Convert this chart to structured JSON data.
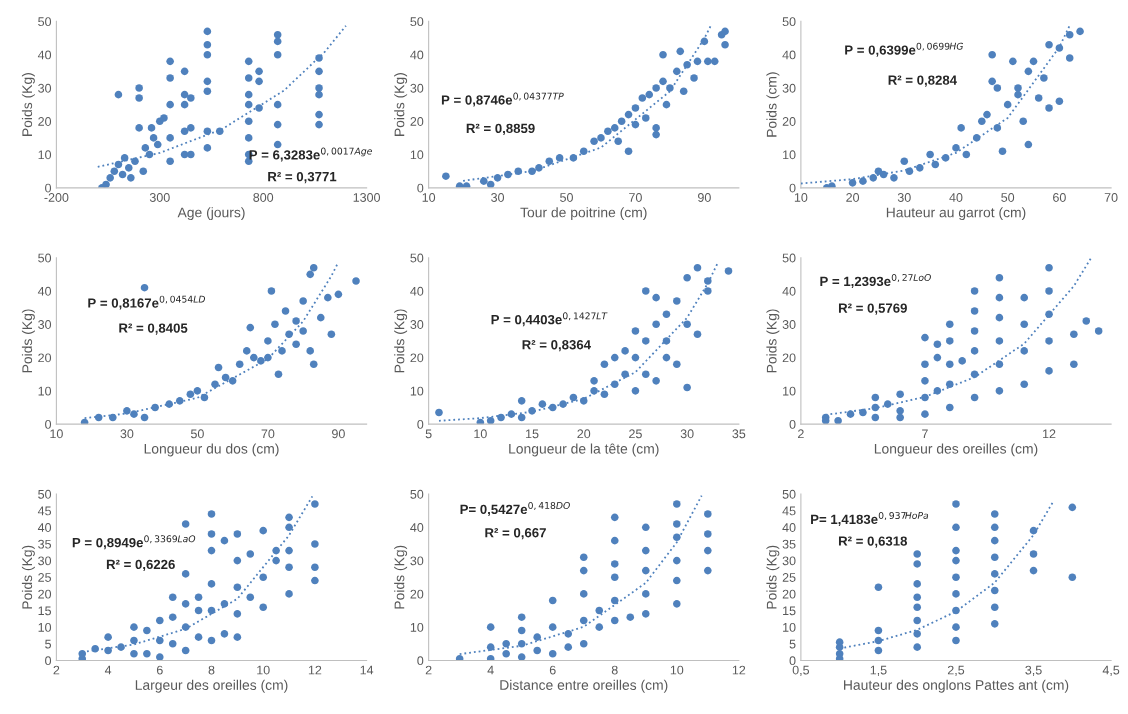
{
  "chart_data": [
    {
      "type": "scatter",
      "xlabel": "Age (jours)",
      "ylabel": "Poids (Kg)",
      "xlim": [
        -200,
        1300
      ],
      "xticks": [
        -200,
        300,
        800,
        1300
      ],
      "ylim": [
        0,
        50
      ],
      "yticks": [
        0,
        10,
        20,
        30,
        40,
        50
      ],
      "grid": false,
      "annotations": [
        "P = 6,3283e$^{0,0017Age}$",
        "R² = 0,3771"
      ],
      "series": [
        {
          "marker": "circle",
          "color": "#4f81bd",
          "x": [
            20,
            40,
            60,
            80,
            100,
            100,
            120,
            150,
            180,
            200,
            200,
            200,
            230,
            250,
            270,
            300,
            320,
            350,
            350,
            350,
            350,
            350,
            420,
            420,
            420,
            420,
            420,
            450,
            450,
            450,
            530,
            530,
            530,
            530,
            530,
            530,
            530,
            590,
            730,
            730,
            730,
            730,
            730,
            730,
            730,
            730,
            780,
            780,
            780,
            870,
            870,
            870,
            870,
            870,
            870,
            1070,
            1070,
            1070,
            1070,
            1070,
            1070,
            130,
            160,
            220,
            260,
            290
          ],
          "values": [
            0,
            1,
            3,
            5,
            7,
            28,
            4,
            6,
            8,
            30,
            27,
            18,
            12,
            10,
            15,
            20,
            21,
            38,
            33,
            25,
            15,
            8,
            35,
            28,
            25,
            17,
            10,
            27,
            18,
            10,
            47,
            43,
            40,
            32,
            29,
            17,
            12,
            17,
            38,
            33,
            28,
            25,
            20,
            15,
            10,
            8,
            35,
            32,
            24,
            46,
            44,
            40,
            25,
            19,
            13,
            39,
            35,
            30,
            28,
            22,
            19,
            9,
            3,
            5,
            18,
            13
          ]
        },
        {
          "type": "line",
          "marker": "none",
          "line_style": "dotted",
          "color": "#4f81bd",
          "x": [
            0,
            300,
            600,
            900,
            1100,
            1200
          ],
          "values": [
            6.3,
            10.5,
            17.6,
            29.2,
            41.0,
            48.7
          ]
        }
      ]
    },
    {
      "type": "scatter",
      "xlabel": "Tour de poitrine (cm)",
      "ylabel": "Poids (Kg)",
      "xlim": [
        10,
        100
      ],
      "xticks": [
        10,
        30,
        50,
        70,
        90
      ],
      "ylim": [
        0,
        50
      ],
      "yticks": [
        0,
        10,
        20,
        30,
        40,
        50
      ],
      "grid": false,
      "annotations": [
        "P = 0,8746e$^{0,04377TP}$",
        "R² = 0,8859"
      ],
      "series": [
        {
          "marker": "circle",
          "color": "#4f81bd",
          "x": [
            15,
            19,
            21,
            26,
            28,
            30,
            33,
            36,
            40,
            42,
            45,
            48,
            52,
            55,
            58,
            60,
            62,
            64,
            66,
            68,
            70,
            72,
            74,
            76,
            78,
            80,
            82,
            85,
            87,
            88,
            70,
            65,
            73,
            79,
            84,
            68,
            76,
            76,
            78,
            83,
            90,
            95,
            96,
            96,
            91,
            93
          ],
          "values": [
            3.5,
            0.5,
            0.5,
            2,
            1,
            3,
            4,
            5,
            5,
            6,
            8,
            9,
            9,
            11,
            14,
            15,
            17,
            18,
            20,
            22,
            24,
            27,
            28,
            30,
            32,
            30,
            35,
            37,
            33,
            38,
            19,
            14,
            21,
            25,
            29,
            11,
            16,
            18,
            40,
            41,
            44,
            46,
            47,
            43,
            38,
            38
          ]
        },
        {
          "type": "line",
          "marker": "none",
          "line_style": "dotted",
          "color": "#4f81bd",
          "x": [
            20,
            40,
            60,
            80,
            90,
            92
          ],
          "values": [
            2.1,
            5.0,
            12.1,
            29.0,
            44.9,
            49.0
          ]
        }
      ]
    },
    {
      "type": "scatter",
      "xlabel": "Hauteur au garrot (cm)",
      "ylabel": "Poids (cm)",
      "xlim": [
        10,
        70
      ],
      "xticks": [
        10,
        20,
        30,
        40,
        50,
        60,
        70
      ],
      "ylim": [
        0,
        50
      ],
      "yticks": [
        0,
        10,
        20,
        30,
        40,
        50
      ],
      "grid": false,
      "annotations": [
        "P = 0,6399e$^{0,0699HG}$",
        "R² = 0,8284"
      ],
      "series": [
        {
          "marker": "circle",
          "color": "#4f81bd",
          "x": [
            15,
            16,
            20,
            22,
            24,
            25,
            26,
            28,
            30,
            31,
            33,
            35,
            36,
            38,
            40,
            41,
            42,
            44,
            45,
            46,
            47,
            47,
            48,
            49,
            50,
            51,
            52,
            53,
            54,
            54,
            55,
            56,
            57,
            58,
            58,
            60,
            60,
            62,
            62,
            64,
            52,
            48
          ],
          "values": [
            0,
            0.5,
            1.5,
            2,
            3,
            5,
            4,
            3,
            8,
            5,
            6,
            10,
            7,
            9,
            12,
            18,
            10,
            15,
            20,
            22,
            40,
            32,
            18,
            11,
            25,
            38,
            30,
            20,
            13,
            35,
            38,
            27,
            33,
            24,
            43,
            26,
            42,
            39,
            46,
            47,
            28,
            30
          ]
        },
        {
          "type": "line",
          "marker": "none",
          "line_style": "dotted",
          "color": "#4f81bd",
          "x": [
            10,
            20,
            30,
            40,
            50,
            60,
            62
          ],
          "values": [
            1.3,
            2.6,
            5.2,
            10.5,
            21.0,
            42.3,
            48.8
          ]
        }
      ]
    },
    {
      "type": "scatter",
      "xlabel": "Longueur du dos (cm)",
      "ylabel": "Poids (Kg)",
      "xlim": [
        10,
        98
      ],
      "xticks": [
        10,
        30,
        50,
        70,
        90
      ],
      "ylim": [
        0,
        50
      ],
      "yticks": [
        0,
        10,
        20,
        30,
        40,
        50
      ],
      "grid": false,
      "annotations": [
        "P = 0,8167e$^{0,0454LD}$",
        "R² = 0,8405"
      ],
      "series": [
        {
          "marker": "circle",
          "color": "#4f81bd",
          "x": [
            18,
            22,
            26,
            30,
            32,
            35,
            35,
            38,
            42,
            45,
            48,
            50,
            52,
            55,
            56,
            58,
            60,
            62,
            64,
            65,
            66,
            68,
            70,
            71,
            72,
            73,
            74,
            75,
            76,
            78,
            80,
            80,
            82,
            82,
            83,
            83,
            85,
            87,
            88,
            90,
            95,
            78,
            70
          ],
          "values": [
            0.5,
            2,
            2,
            4,
            3,
            41,
            2,
            5,
            6,
            7,
            9,
            10,
            8,
            12,
            17,
            14,
            13,
            18,
            22,
            29,
            20,
            19,
            25,
            40,
            30,
            15,
            22,
            34,
            27,
            31,
            37,
            28,
            22,
            45,
            47,
            18,
            32,
            38,
            27,
            39,
            43,
            24,
            20
          ]
        },
        {
          "type": "line",
          "marker": "none",
          "line_style": "dotted",
          "color": "#4f81bd",
          "x": [
            18,
            30,
            50,
            70,
            80,
            88,
            90
          ],
          "values": [
            1.8,
            3.2,
            7.9,
            19.6,
            30.9,
            44.5,
            48.7
          ]
        }
      ]
    },
    {
      "type": "scatter",
      "xlabel": "Longueur de la tête (cm)",
      "ylabel": "Poids (Kg)",
      "xlim": [
        5,
        35
      ],
      "xticks": [
        5,
        10,
        15,
        20,
        25,
        30,
        35
      ],
      "ylim": [
        0,
        50
      ],
      "yticks": [
        0,
        10,
        20,
        30,
        40,
        50
      ],
      "grid": false,
      "annotations": [
        "P = 0,4403e$^{0,1427LT}$",
        "R² = 0,8364"
      ],
      "series": [
        {
          "marker": "circle",
          "color": "#4f81bd",
          "x": [
            6,
            10,
            11,
            12,
            13,
            14,
            14,
            15,
            16,
            17,
            18,
            19,
            20,
            21,
            21,
            22,
            22,
            23,
            23,
            24,
            24,
            25,
            25,
            26,
            26,
            26,
            27,
            27,
            27,
            28,
            28,
            29,
            29,
            30,
            30,
            30,
            31,
            31,
            32,
            32,
            34,
            28,
            25
          ],
          "values": [
            3.5,
            0.5,
            1,
            2,
            3,
            7,
            2,
            4,
            6,
            5,
            6,
            8,
            7,
            10,
            13,
            9,
            18,
            12,
            20,
            15,
            22,
            10,
            28,
            40,
            15,
            25,
            38,
            13,
            30,
            20,
            33,
            18,
            37,
            11,
            30,
            44,
            47,
            27,
            40,
            43,
            46,
            25,
            20
          ]
        },
        {
          "type": "line",
          "marker": "none",
          "line_style": "dotted",
          "color": "#4f81bd",
          "x": [
            6,
            10,
            15,
            20,
            25,
            30,
            32,
            33
          ],
          "values": [
            1.0,
            1.8,
            3.7,
            7.6,
            15.6,
            32.0,
            42.3,
            48.7
          ]
        }
      ]
    },
    {
      "type": "scatter",
      "xlabel": "Longueur des oreilles (cm)",
      "ylabel": "Poids (Kg)",
      "xlim": [
        2,
        14.5
      ],
      "xticks": [
        2,
        7,
        12
      ],
      "ylim": [
        0,
        50
      ],
      "yticks": [
        0,
        10,
        20,
        30,
        40,
        50
      ],
      "grid": false,
      "annotations": [
        "P = 1,2393e$^{0,27LoO}$",
        "R² = 0,5769"
      ],
      "series": [
        {
          "marker": "circle",
          "color": "#4f81bd",
          "x": [
            3,
            3,
            3.5,
            4,
            4.5,
            5,
            5,
            5,
            5.5,
            6,
            6,
            6,
            7,
            7,
            7,
            7,
            7,
            7.5,
            7.5,
            7.5,
            8,
            8,
            8,
            8,
            8,
            8.5,
            9,
            9,
            9,
            9,
            9,
            9,
            10,
            10,
            10,
            10,
            10,
            10,
            11,
            11,
            11,
            11,
            12,
            12,
            12,
            12,
            12,
            13,
            13,
            13.5,
            14
          ],
          "values": [
            2,
            1,
            1,
            3,
            3.5,
            5,
            8,
            2,
            6,
            4,
            9,
            2,
            3,
            8,
            13,
            18,
            26,
            10,
            20,
            24,
            5,
            12,
            18,
            25,
            30,
            19,
            8,
            15,
            22,
            28,
            34,
            40,
            10,
            18,
            25,
            32,
            38,
            44,
            12,
            22,
            30,
            38,
            16,
            25,
            33,
            40,
            47,
            18,
            27,
            31,
            28
          ]
        },
        {
          "type": "line",
          "marker": "none",
          "line_style": "dotted",
          "color": "#4f81bd",
          "x": [
            3,
            5,
            7,
            9,
            11,
            13,
            13.7
          ],
          "values": [
            2.8,
            4.8,
            8.2,
            14.1,
            24.2,
            41.5,
            50.0
          ]
        }
      ]
    },
    {
      "type": "scatter",
      "xlabel": "Largeur des oreilles (cm)",
      "ylabel": "Poids (Kg)",
      "xlim": [
        2,
        14
      ],
      "xticks": [
        2,
        4,
        6,
        8,
        10,
        12,
        14
      ],
      "ylim": [
        0,
        50
      ],
      "yticks": [
        0,
        5,
        10,
        15,
        20,
        25,
        30,
        35,
        40,
        45,
        50
      ],
      "grid": false,
      "annotations": [
        "P = 0,8949e$^{0,3369LaO}$",
        "R² = 0,6226"
      ],
      "series": [
        {
          "marker": "circle",
          "color": "#4f81bd",
          "x": [
            3,
            3,
            3.5,
            4,
            4,
            4.5,
            5,
            5,
            5,
            5.5,
            5.5,
            6,
            6,
            6,
            6.5,
            6.5,
            6.5,
            7,
            7,
            7,
            7,
            7,
            7.5,
            7.5,
            7.5,
            8,
            8,
            8,
            8,
            8,
            8,
            8.5,
            8.5,
            8.5,
            9,
            9,
            9,
            9,
            9,
            9.5,
            9.5,
            10,
            10,
            10,
            10.5,
            10.5,
            11,
            11,
            11,
            11,
            11,
            12,
            12,
            12,
            12
          ],
          "values": [
            0.5,
            2,
            3.5,
            3,
            7,
            4,
            2,
            6,
            10,
            2,
            9,
            1,
            6,
            12,
            5,
            13,
            19,
            3,
            10,
            17,
            26,
            41,
            7,
            15,
            19,
            6,
            15,
            23,
            33,
            38,
            44,
            8,
            17,
            36,
            7,
            14,
            22,
            30,
            38,
            19,
            32,
            16,
            25,
            39,
            30,
            33,
            20,
            28,
            33,
            40,
            43,
            24,
            28,
            35,
            47
          ]
        },
        {
          "type": "line",
          "marker": "none",
          "line_style": "dotted",
          "color": "#4f81bd",
          "x": [
            3,
            5,
            7,
            9,
            11,
            11.9
          ],
          "values": [
            2.5,
            4.8,
            9.5,
            18.5,
            37.6,
            49.3
          ]
        }
      ]
    },
    {
      "type": "scatter",
      "xlabel": "Distance entre oreilles (cm)",
      "ylabel": "Poids (Kg)",
      "xlim": [
        2,
        12
      ],
      "xticks": [
        2,
        4,
        6,
        8,
        10,
        12
      ],
      "ylim": [
        0,
        50
      ],
      "yticks": [
        0,
        10,
        20,
        30,
        40,
        50
      ],
      "grid": false,
      "annotations": [
        "P= 0,5427e$^{0,418DO}$",
        "R² = 0,667"
      ],
      "series": [
        {
          "marker": "circle",
          "color": "#4f81bd",
          "x": [
            3,
            4,
            4,
            4,
            4.5,
            4.5,
            5,
            5,
            5,
            5,
            5.5,
            5.5,
            6,
            6,
            6,
            6.5,
            6.5,
            7,
            7,
            7,
            7,
            7,
            7.5,
            7.5,
            8,
            8,
            8,
            8,
            8,
            8,
            8.5,
            9,
            9,
            9,
            9,
            9,
            10,
            10,
            10,
            10,
            10,
            10,
            11,
            11,
            11,
            11
          ],
          "values": [
            0.5,
            0.5,
            4,
            10,
            2,
            5,
            1,
            5,
            9,
            13,
            3,
            7,
            2,
            10,
            18,
            4,
            8,
            5,
            12,
            20,
            27,
            31,
            10,
            15,
            12,
            18,
            25,
            29,
            36,
            43,
            13,
            14,
            20,
            27,
            33,
            40,
            17,
            24,
            30,
            37,
            41,
            47,
            27,
            33,
            38,
            44
          ]
        },
        {
          "type": "line",
          "marker": "none",
          "line_style": "dotted",
          "color": "#4f81bd",
          "x": [
            3,
            5,
            7,
            9,
            10,
            10.8
          ],
          "values": [
            1.9,
            4.4,
            10.1,
            23.3,
            35.5,
            49.5
          ]
        }
      ]
    },
    {
      "type": "scatter",
      "xlabel": "Hauteur des onglons Pattes ant (cm)",
      "ylabel": "Poids (Kg)",
      "xlim": [
        0.5,
        4.5
      ],
      "xticks": [
        {
          "value": 0.5,
          "label": "0,5"
        },
        {
          "value": 1.5,
          "label": "1,5"
        },
        {
          "value": 2.5,
          "label": "2,5"
        },
        {
          "value": 3.5,
          "label": "3,5"
        },
        {
          "value": 4.5,
          "label": "4,5"
        }
      ],
      "ylim": [
        0,
        50
      ],
      "yticks": [
        0,
        5,
        10,
        15,
        20,
        25,
        30,
        35,
        40,
        45,
        50
      ],
      "grid": false,
      "annotations": [
        "P= 1,4183e$^{0,937HoPa}$",
        "R² = 0,6318"
      ],
      "series": [
        {
          "marker": "circle",
          "color": "#4f81bd",
          "x": [
            1,
            1,
            1,
            1,
            1.5,
            1.5,
            1.5,
            1.5,
            2,
            2,
            2,
            2,
            2,
            2,
            2,
            2,
            2.5,
            2.5,
            2.5,
            2.5,
            2.5,
            2.5,
            2.5,
            2.5,
            2.5,
            3,
            3,
            3,
            3,
            3,
            3,
            3,
            3,
            3.5,
            3.5,
            3.5,
            4,
            4
          ],
          "values": [
            0.5,
            2,
            4,
            5.5,
            3,
            6,
            9,
            22,
            4,
            8,
            12,
            16,
            19,
            23,
            29,
            32,
            6,
            10,
            15,
            20,
            25,
            30,
            33,
            40,
            47,
            11,
            16,
            21,
            26,
            31,
            36,
            40,
            44,
            27,
            32,
            39,
            25,
            46
          ]
        },
        {
          "type": "line",
          "marker": "none",
          "line_style": "dotted",
          "color": "#4f81bd",
          "x": [
            1,
            1.5,
            2,
            2.5,
            3,
            3.5,
            3.75
          ],
          "values": [
            3.6,
            5.8,
            9.2,
            14.7,
            23.4,
            37.7,
            47.6
          ]
        }
      ]
    }
  ]
}
